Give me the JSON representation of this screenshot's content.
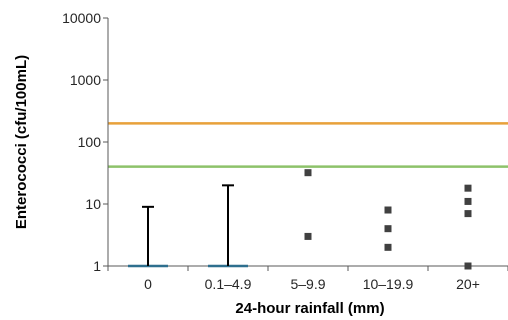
{
  "chart_data": {
    "type": "box",
    "title": "",
    "xlabel": "24-hour rainfall (mm)",
    "ylabel": "Enterococci (cfu/100mL)",
    "yscale": "log",
    "ylim": [
      1,
      10000
    ],
    "yticks": [
      "1",
      "10",
      "100",
      "1000",
      "10000"
    ],
    "categories": [
      "0",
      "0.1–4.9",
      "5–9.9",
      "10–19.9",
      "20+"
    ],
    "reference_lines": [
      {
        "value": 200,
        "color": "#E8A13A"
      },
      {
        "value": 40,
        "color": "#8DC26A"
      }
    ],
    "boxes": [
      {
        "category": "0",
        "min": 1,
        "q1": 1,
        "median": 1,
        "q3": 1,
        "max": 9
      },
      {
        "category": "0.1–4.9",
        "min": 1,
        "q1": 1,
        "median": 1,
        "q3": 1,
        "max": 20
      }
    ],
    "points": [
      {
        "category": "5–9.9",
        "values": [
          32,
          3
        ]
      },
      {
        "category": "10–19.9",
        "values": [
          8,
          4,
          2
        ]
      },
      {
        "category": "20+",
        "values": [
          18,
          11,
          7,
          1
        ]
      }
    ],
    "colors": {
      "axis": "#595959",
      "whisker": "#000000",
      "box_base": "#2E6F8E",
      "point": "#404040"
    },
    "grid": false,
    "legend": "none"
  }
}
